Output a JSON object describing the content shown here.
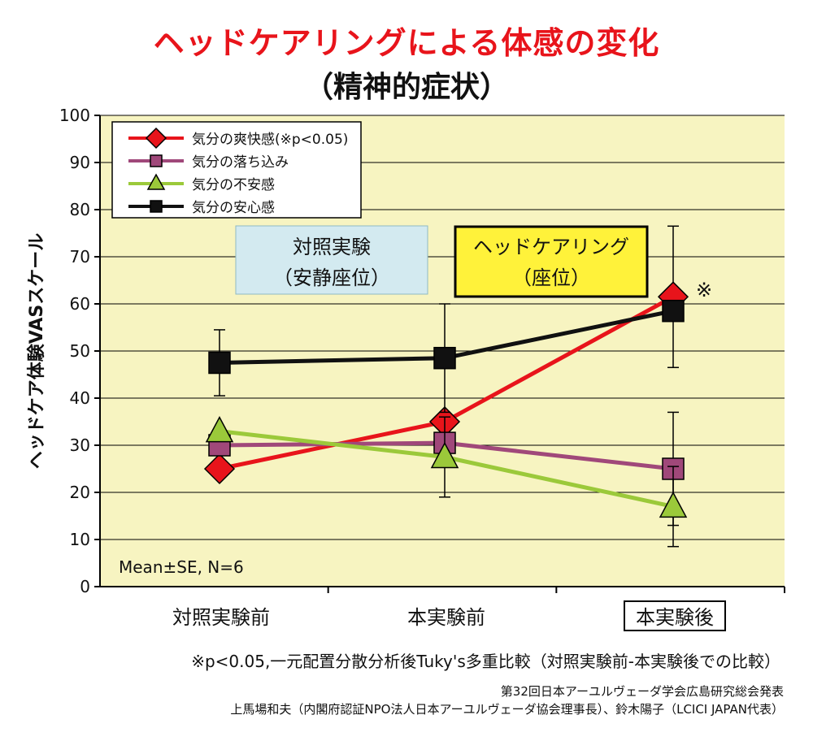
{
  "header": {
    "title": "ヘッドケアリングによる体感の変化",
    "subtitle": "（精神的症状）"
  },
  "chart_data": {
    "type": "line",
    "ylabel": "ヘッドケア体験VASスケール",
    "ylim": [
      0,
      100
    ],
    "yticks": [
      0,
      10,
      20,
      30,
      40,
      50,
      60,
      70,
      80,
      90,
      100
    ],
    "categories": [
      "対照実験前",
      "本実験前",
      "本実験後"
    ],
    "boxed_category": "本実験後",
    "grid": true,
    "legend_position": "top-left",
    "series": [
      {
        "name": "気分の爽快感(※p<0.05)",
        "color": "#e8141b",
        "marker": "diamond",
        "values": [
          25,
          35,
          61.5
        ],
        "se": [
          null,
          null,
          15
        ]
      },
      {
        "name": "気分の落ち込み",
        "color": "#a0487a",
        "marker": "square",
        "values": [
          30,
          30.5,
          25
        ],
        "se": [
          null,
          null,
          12
        ]
      },
      {
        "name": "気分の不安感",
        "color": "#9bc93a",
        "marker": "triangle",
        "values": [
          33,
          27.5,
          17
        ],
        "se": [
          null,
          8.5,
          8.5
        ]
      },
      {
        "name": "気分の安心感",
        "color": "#111111",
        "marker": "square",
        "values": [
          47.5,
          48.5,
          58.5
        ],
        "se": [
          7,
          11.5,
          null
        ]
      }
    ],
    "annotations": {
      "control_box": [
        "対照実験",
        "（安静座位）"
      ],
      "main_box": [
        "ヘッドケアリング",
        "（座位）"
      ],
      "significance_mark": "※",
      "stats": "Mean±SE, N=6"
    }
  },
  "footer": {
    "note": "※p<0.05,一元配置分散分析後Tuky's多重比較（対照実験前-本実験後での比較）",
    "credit1": "第32回日本アーユルヴェーダ学会広島研究総会発表",
    "credit2": "上馬場和夫（内閣府認証NPO法人日本アーユルヴェーダ協会理事長）、鈴木陽子（LCICI JAPAN代表）"
  },
  "colors": {
    "plot_background": "#f7f4c1",
    "control_box_fill": "#d3eaf0",
    "main_box_fill": "#fff23a",
    "title_red": "#e8141b"
  }
}
